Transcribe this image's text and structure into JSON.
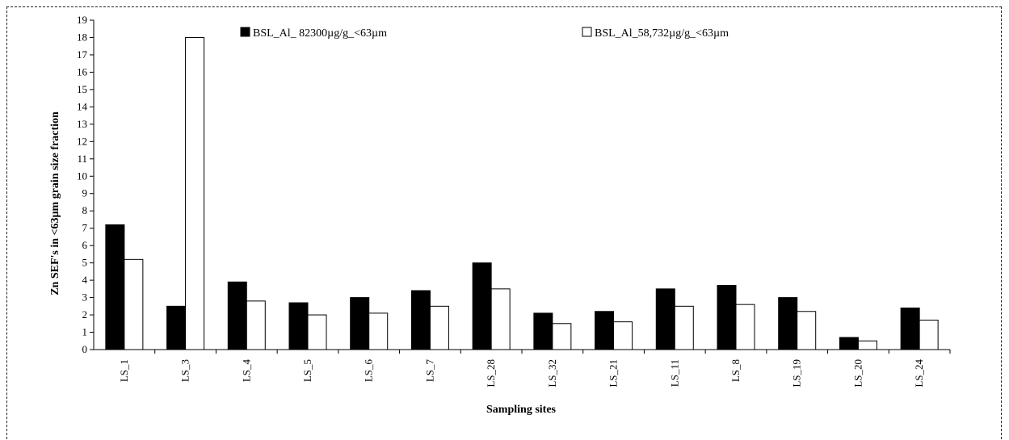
{
  "chart_data": {
    "type": "bar",
    "categories": [
      "LS_1",
      "LS_3",
      "LS_4",
      "LS_5",
      "LS_6",
      "LS_7",
      "LS_28",
      "LS_32",
      "LS_21",
      "LS_11",
      "LS_8",
      "LS_19",
      "LS_20",
      "LS_24"
    ],
    "series": [
      {
        "name": "BSL_Al_ 82300µg/g_<63µm",
        "color": "#000000",
        "values": [
          7.2,
          2.5,
          3.9,
          2.7,
          3.0,
          3.4,
          5.0,
          2.1,
          2.2,
          3.5,
          3.7,
          3.0,
          0.7,
          2.4
        ]
      },
      {
        "name": "BSL_Al_58,732µg/g_<63µm",
        "color": "#ffffff",
        "values": [
          5.2,
          18.0,
          2.8,
          2.0,
          2.1,
          2.5,
          3.5,
          1.5,
          1.6,
          2.5,
          2.6,
          2.2,
          0.5,
          1.7
        ]
      }
    ],
    "yticks": [
      "0",
      "1",
      "2",
      "3",
      "4",
      "5",
      "6",
      "7",
      "8",
      "9",
      "10",
      "11",
      "12",
      "13",
      "14",
      "15",
      "16",
      "17",
      "18",
      "19"
    ],
    "ylim": [
      0,
      19
    ],
    "xlabel": "Sampling sites",
    "ylabel": "Zn SEF's in <63µm grain size fraction",
    "legend_position": "top",
    "grid": false
  }
}
